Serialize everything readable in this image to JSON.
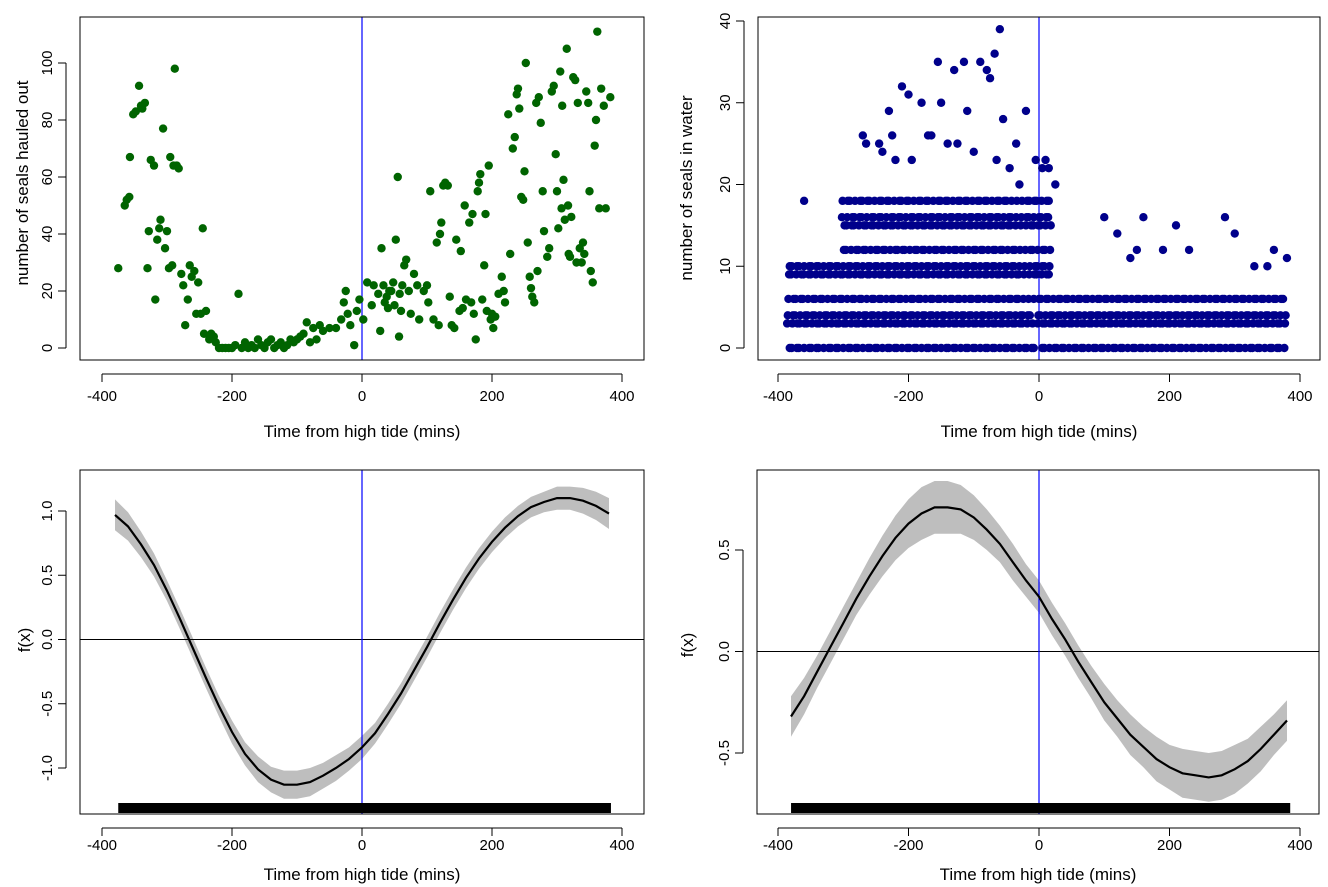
{
  "figure": {
    "colors": {
      "hauled_out_points": "#006400",
      "in_water_points": "#00008B",
      "reference_line": "#0000FF",
      "confidence_band": "#BEBEBE",
      "smooth_curve": "#000000",
      "rug": "#000000"
    }
  },
  "chart_data": [
    {
      "type": "scatter",
      "xlabel": "Time from high tide (mins)",
      "ylabel": "number of seals hauled out",
      "xlim": [
        -400,
        400
      ],
      "ylim": [
        0,
        110
      ],
      "xticks": [
        -400,
        -200,
        0,
        200,
        400
      ],
      "yticks": [
        0,
        20,
        40,
        60,
        80,
        100
      ],
      "grid": false,
      "vline_x": 0,
      "point_color": "#006400",
      "points": [
        [
          -375,
          28
        ],
        [
          -365,
          50
        ],
        [
          -362,
          52
        ],
        [
          -358,
          53
        ],
        [
          -357,
          67
        ],
        [
          -352,
          82
        ],
        [
          -348,
          83
        ],
        [
          -343,
          92
        ],
        [
          -340,
          85
        ],
        [
          -338,
          84
        ],
        [
          -334,
          86
        ],
        [
          -330,
          28
        ],
        [
          -328,
          41
        ],
        [
          -325,
          66
        ],
        [
          -320,
          64
        ],
        [
          -318,
          17
        ],
        [
          -315,
          38
        ],
        [
          -312,
          42
        ],
        [
          -310,
          45
        ],
        [
          -306,
          77
        ],
        [
          -303,
          35
        ],
        [
          -300,
          41
        ],
        [
          -297,
          28
        ],
        [
          -295,
          67
        ],
        [
          -292,
          29
        ],
        [
          -290,
          64
        ],
        [
          -288,
          98
        ],
        [
          -285,
          64
        ],
        [
          -282,
          63
        ],
        [
          -278,
          26
        ],
        [
          -275,
          22
        ],
        [
          -272,
          8
        ],
        [
          -268,
          17
        ],
        [
          -265,
          29
        ],
        [
          -262,
          25
        ],
        [
          -258,
          27
        ],
        [
          -255,
          12
        ],
        [
          -252,
          23
        ],
        [
          -248,
          12
        ],
        [
          -245,
          42
        ],
        [
          -243,
          5
        ],
        [
          -240,
          13
        ],
        [
          -235,
          3
        ],
        [
          -232,
          5
        ],
        [
          -228,
          4
        ],
        [
          -225,
          2
        ],
        [
          -220,
          0
        ],
        [
          -215,
          0
        ],
        [
          -210,
          0
        ],
        [
          -205,
          0
        ],
        [
          -200,
          0
        ],
        [
          -195,
          1
        ],
        [
          -190,
          19
        ],
        [
          -185,
          0
        ],
        [
          -180,
          2
        ],
        [
          -175,
          0
        ],
        [
          -170,
          1
        ],
        [
          -165,
          0
        ],
        [
          -160,
          3
        ],
        [
          -155,
          1
        ],
        [
          -150,
          0
        ],
        [
          -145,
          2
        ],
        [
          -140,
          3
        ],
        [
          -135,
          0
        ],
        [
          -130,
          1
        ],
        [
          -125,
          2
        ],
        [
          -120,
          0
        ],
        [
          -115,
          1
        ],
        [
          -110,
          3
        ],
        [
          -105,
          2
        ],
        [
          -100,
          3
        ],
        [
          -95,
          4
        ],
        [
          -90,
          5
        ],
        [
          -85,
          9
        ],
        [
          -80,
          2
        ],
        [
          -75,
          7
        ],
        [
          -70,
          3
        ],
        [
          -65,
          8
        ],
        [
          -60,
          6
        ],
        [
          -50,
          7
        ],
        [
          -40,
          7
        ],
        [
          -32,
          10
        ],
        [
          -28,
          16
        ],
        [
          -25,
          20
        ],
        [
          -22,
          12
        ],
        [
          -18,
          8
        ],
        [
          -12,
          1
        ],
        [
          -8,
          13
        ],
        [
          -4,
          17
        ],
        [
          2,
          10
        ],
        [
          8,
          23
        ],
        [
          15,
          15
        ],
        [
          18,
          22
        ],
        [
          25,
          19
        ],
        [
          28,
          6
        ],
        [
          30,
          35
        ],
        [
          33,
          22
        ],
        [
          35,
          16
        ],
        [
          38,
          18
        ],
        [
          40,
          14
        ],
        [
          42,
          20
        ],
        [
          45,
          20
        ],
        [
          48,
          23
        ],
        [
          50,
          15
        ],
        [
          52,
          38
        ],
        [
          55,
          60
        ],
        [
          57,
          4
        ],
        [
          58,
          19
        ],
        [
          60,
          13
        ],
        [
          62,
          22
        ],
        [
          65,
          29
        ],
        [
          68,
          31
        ],
        [
          72,
          20
        ],
        [
          75,
          12
        ],
        [
          80,
          26
        ],
        [
          85,
          22
        ],
        [
          88,
          10
        ],
        [
          95,
          20
        ],
        [
          100,
          22
        ],
        [
          102,
          16
        ],
        [
          105,
          55
        ],
        [
          110,
          10
        ],
        [
          115,
          37
        ],
        [
          118,
          8
        ],
        [
          120,
          40
        ],
        [
          122,
          44
        ],
        [
          125,
          57
        ],
        [
          128,
          58
        ],
        [
          132,
          57
        ],
        [
          135,
          18
        ],
        [
          138,
          8
        ],
        [
          142,
          7
        ],
        [
          145,
          38
        ],
        [
          150,
          13
        ],
        [
          152,
          34
        ],
        [
          155,
          14
        ],
        [
          158,
          50
        ],
        [
          160,
          17
        ],
        [
          165,
          44
        ],
        [
          168,
          16
        ],
        [
          170,
          47
        ],
        [
          172,
          12
        ],
        [
          175,
          3
        ],
        [
          178,
          55
        ],
        [
          180,
          58
        ],
        [
          182,
          61
        ],
        [
          185,
          17
        ],
        [
          188,
          29
        ],
        [
          190,
          47
        ],
        [
          192,
          13
        ],
        [
          195,
          64
        ],
        [
          198,
          10
        ],
        [
          200,
          12
        ],
        [
          202,
          7
        ],
        [
          205,
          11
        ],
        [
          210,
          19
        ],
        [
          215,
          25
        ],
        [
          218,
          20
        ],
        [
          220,
          16
        ],
        [
          225,
          82
        ],
        [
          228,
          33
        ],
        [
          232,
          70
        ],
        [
          235,
          74
        ],
        [
          238,
          89
        ],
        [
          240,
          91
        ],
        [
          242,
          84
        ],
        [
          245,
          53
        ],
        [
          248,
          52
        ],
        [
          250,
          62
        ],
        [
          252,
          100
        ],
        [
          255,
          37
        ],
        [
          258,
          25
        ],
        [
          260,
          21
        ],
        [
          262,
          18
        ],
        [
          265,
          16
        ],
        [
          268,
          86
        ],
        [
          270,
          27
        ],
        [
          272,
          88
        ],
        [
          275,
          79
        ],
        [
          278,
          55
        ],
        [
          280,
          41
        ],
        [
          285,
          32
        ],
        [
          288,
          35
        ],
        [
          292,
          90
        ],
        [
          295,
          92
        ],
        [
          298,
          68
        ],
        [
          300,
          55
        ],
        [
          302,
          42
        ],
        [
          305,
          97
        ],
        [
          307,
          49
        ],
        [
          308,
          85
        ],
        [
          310,
          59
        ],
        [
          312,
          45
        ],
        [
          315,
          105
        ],
        [
          317,
          50
        ],
        [
          318,
          33
        ],
        [
          320,
          32
        ],
        [
          322,
          46
        ],
        [
          325,
          95
        ],
        [
          328,
          94
        ],
        [
          330,
          30
        ],
        [
          332,
          86
        ],
        [
          335,
          35
        ],
        [
          338,
          30
        ],
        [
          340,
          37
        ],
        [
          342,
          33
        ],
        [
          345,
          90
        ],
        [
          348,
          86
        ],
        [
          350,
          55
        ],
        [
          352,
          27
        ],
        [
          355,
          23
        ],
        [
          358,
          71
        ],
        [
          360,
          80
        ],
        [
          362,
          111
        ],
        [
          365,
          49
        ],
        [
          368,
          91
        ],
        [
          372,
          85
        ],
        [
          375,
          49
        ],
        [
          382,
          88
        ]
      ]
    },
    {
      "type": "scatter",
      "xlabel": "Time from high tide (mins)",
      "ylabel": "number of seals in water",
      "xlim": [
        -400,
        400
      ],
      "ylim": [
        0,
        40
      ],
      "xticks": [
        -400,
        -200,
        0,
        200,
        400
      ],
      "yticks": [
        0,
        10,
        20,
        30,
        40
      ],
      "grid": false,
      "vline_x": 0,
      "point_color": "#00008B",
      "points": [
        [
          -360,
          18
        ],
        [
          -270,
          26
        ],
        [
          -230,
          29
        ],
        [
          -225,
          26
        ],
        [
          -210,
          32
        ],
        [
          -200,
          31
        ],
        [
          -180,
          30
        ],
        [
          -155,
          35
        ],
        [
          -150,
          30
        ],
        [
          -130,
          34
        ],
        [
          -115,
          35
        ],
        [
          -110,
          29
        ],
        [
          -90,
          35
        ],
        [
          -80,
          34
        ],
        [
          -75,
          33
        ],
        [
          -68,
          36
        ],
        [
          -60,
          39
        ],
        [
          -55,
          28
        ],
        [
          -35,
          25
        ],
        [
          -20,
          29
        ],
        [
          -5,
          23
        ],
        [
          5,
          22
        ],
        [
          10,
          23
        ],
        [
          15,
          22
        ],
        [
          25,
          20
        ],
        [
          -265,
          25
        ],
        [
          -245,
          25
        ],
        [
          -240,
          24
        ],
        [
          -220,
          23
        ],
        [
          -195,
          23
        ],
        [
          -170,
          26
        ],
        [
          -165,
          26
        ],
        [
          -140,
          25
        ],
        [
          -125,
          25
        ],
        [
          -100,
          24
        ],
        [
          -65,
          23
        ],
        [
          -45,
          22
        ],
        [
          -30,
          20
        ],
        [
          100,
          16
        ],
        [
          160,
          16
        ],
        [
          210,
          15
        ],
        [
          285,
          16
        ],
        [
          300,
          14
        ],
        [
          150,
          12
        ],
        [
          190,
          12
        ],
        [
          120,
          14
        ],
        [
          140,
          11
        ],
        [
          360,
          12
        ],
        [
          380,
          11
        ],
        [
          330,
          10
        ],
        [
          350,
          10
        ],
        [
          230,
          12
        ]
      ]
    },
    {
      "type": "line",
      "xlabel": "Time from high tide (mins)",
      "ylabel": "f(x)",
      "xlim": [
        -400,
        400
      ],
      "ylim": [
        -1.3,
        1.25
      ],
      "xticks": [
        -400,
        -200,
        0,
        200,
        400
      ],
      "yticks": [
        -1.0,
        -0.5,
        0.0,
        0.5,
        1.0
      ],
      "ytick_labels": [
        "-1.0",
        "-0.5",
        "0.0",
        "0.5",
        "1.0"
      ],
      "grid": false,
      "vline_x": 0,
      "hline_y": 0,
      "x": [
        -380,
        -360,
        -340,
        -320,
        -300,
        -280,
        -260,
        -240,
        -220,
        -200,
        -180,
        -160,
        -140,
        -120,
        -100,
        -80,
        -60,
        -40,
        -20,
        0,
        20,
        40,
        60,
        80,
        100,
        120,
        140,
        160,
        180,
        200,
        220,
        240,
        260,
        280,
        300,
        320,
        340,
        360,
        380
      ],
      "series": [
        {
          "fit": [
            0.97,
            0.88,
            0.74,
            0.58,
            0.38,
            0.16,
            -0.07,
            -0.3,
            -0.52,
            -0.72,
            -0.89,
            -1.01,
            -1.09,
            -1.13,
            -1.13,
            -1.11,
            -1.06,
            -1.0,
            -0.93,
            -0.84,
            -0.73,
            -0.58,
            -0.42,
            -0.24,
            -0.06,
            0.13,
            0.31,
            0.48,
            0.63,
            0.76,
            0.87,
            0.96,
            1.03,
            1.07,
            1.1,
            1.1,
            1.08,
            1.04,
            0.98
          ],
          "band_half_width": [
            0.12,
            0.11,
            0.1,
            0.09,
            0.08,
            0.08,
            0.08,
            0.08,
            0.08,
            0.09,
            0.09,
            0.1,
            0.1,
            0.11,
            0.11,
            0.11,
            0.1,
            0.1,
            0.09,
            0.09,
            0.08,
            0.08,
            0.08,
            0.08,
            0.08,
            0.08,
            0.08,
            0.08,
            0.08,
            0.08,
            0.08,
            0.08,
            0.08,
            0.08,
            0.09,
            0.09,
            0.1,
            0.11,
            0.12
          ]
        }
      ],
      "rug": {
        "from": -375,
        "to": 383
      }
    },
    {
      "type": "line",
      "xlabel": "Time from high tide (mins)",
      "ylabel": "f(x)",
      "xlim": [
        -400,
        400
      ],
      "ylim": [
        -0.8,
        0.85
      ],
      "xticks": [
        -400,
        -200,
        0,
        200,
        400
      ],
      "yticks": [
        -0.5,
        0.0,
        0.5
      ],
      "ytick_labels": [
        "-0.5",
        "0.0",
        "0.5"
      ],
      "grid": false,
      "vline_x": 0,
      "hline_y": 0,
      "x": [
        -380,
        -360,
        -340,
        -320,
        -300,
        -280,
        -260,
        -240,
        -220,
        -200,
        -180,
        -160,
        -140,
        -120,
        -100,
        -80,
        -60,
        -40,
        -20,
        0,
        20,
        40,
        60,
        80,
        100,
        120,
        140,
        160,
        180,
        200,
        220,
        240,
        260,
        280,
        300,
        320,
        340,
        360,
        380
      ],
      "series": [
        {
          "fit": [
            -0.32,
            -0.22,
            -0.1,
            0.02,
            0.14,
            0.26,
            0.37,
            0.47,
            0.56,
            0.63,
            0.68,
            0.71,
            0.71,
            0.7,
            0.66,
            0.6,
            0.53,
            0.44,
            0.35,
            0.27,
            0.16,
            0.06,
            -0.05,
            -0.15,
            -0.25,
            -0.33,
            -0.41,
            -0.47,
            -0.53,
            -0.57,
            -0.6,
            -0.61,
            -0.62,
            -0.61,
            -0.58,
            -0.54,
            -0.48,
            -0.41,
            -0.34
          ],
          "band_half_width": [
            0.1,
            0.09,
            0.08,
            0.08,
            0.08,
            0.08,
            0.09,
            0.1,
            0.11,
            0.12,
            0.13,
            0.13,
            0.13,
            0.12,
            0.11,
            0.1,
            0.09,
            0.09,
            0.08,
            0.08,
            0.08,
            0.08,
            0.08,
            0.08,
            0.09,
            0.09,
            0.1,
            0.1,
            0.11,
            0.11,
            0.12,
            0.12,
            0.12,
            0.12,
            0.12,
            0.11,
            0.11,
            0.1,
            0.1
          ]
        }
      ],
      "rug": {
        "from": -380,
        "to": 385
      }
    }
  ]
}
